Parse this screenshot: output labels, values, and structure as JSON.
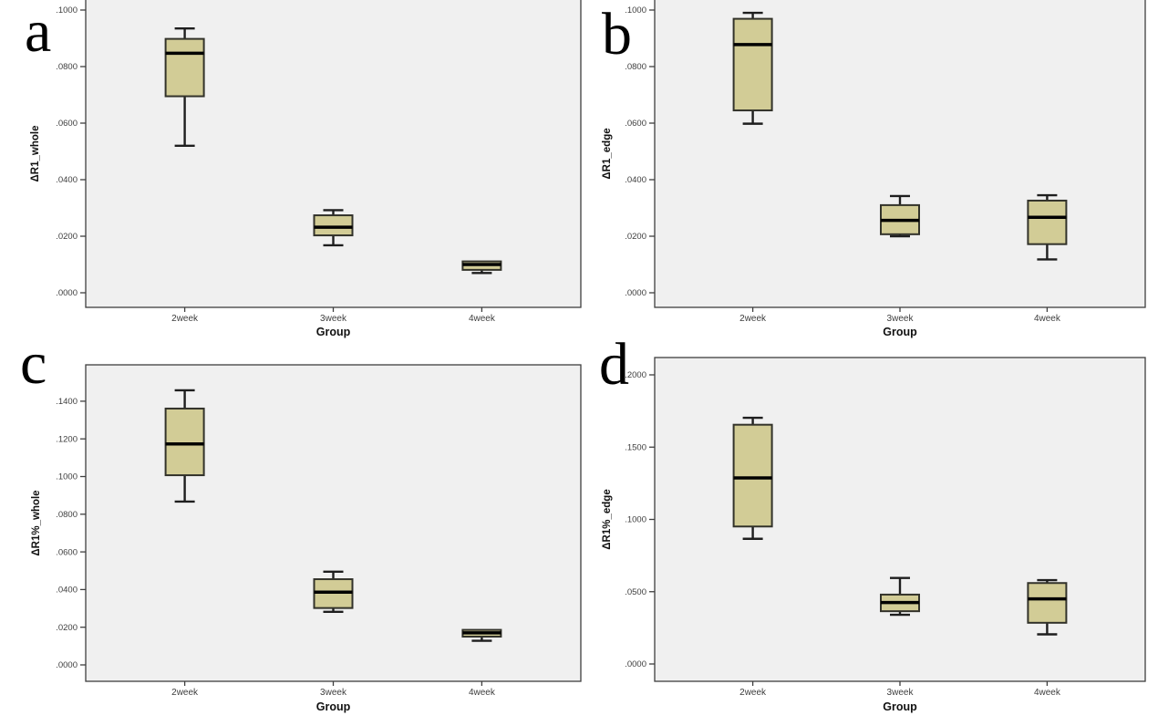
{
  "figure": {
    "panel_count": 4,
    "x_axis_title": "Group",
    "categories": [
      "2week",
      "3week",
      "4week"
    ]
  },
  "colors": {
    "background": "#FFFFFF",
    "plot_bg": "#F0F0F0",
    "frame": "#3F3F3F",
    "box_fill": "#D2CC96",
    "box_stroke": "#32322A",
    "median": "#000000",
    "whisker": "#1E1E1E",
    "tick_text": "#3D3D3D",
    "label_text": "#111111"
  },
  "chart_data": [
    {
      "type": "box",
      "panel_label": "a",
      "ylabel": "ΔR1_whole",
      "xlabel": "Group",
      "categories": [
        "2week",
        "3week",
        "4week"
      ],
      "ylim": [
        0,
        0.1
      ],
      "grid": false,
      "ytick_labels": [
        ".0000",
        ".0200",
        ".0400",
        ".0600",
        ".0800",
        ".1000"
      ],
      "ytick_values": [
        0,
        0.02,
        0.04,
        0.06,
        0.08,
        0.1
      ],
      "boxes": [
        {
          "category": "2week",
          "whisker_low": 0.052,
          "q1": 0.0695,
          "median": 0.0847,
          "q3": 0.0898,
          "whisker_high": 0.0935
        },
        {
          "category": "3week",
          "whisker_low": 0.0168,
          "q1": 0.0203,
          "median": 0.0232,
          "q3": 0.0274,
          "whisker_high": 0.0292
        },
        {
          "category": "4week",
          "whisker_low": 0.007,
          "q1": 0.0081,
          "median": 0.01,
          "q3": 0.0111,
          "whisker_high": 0.0111
        }
      ]
    },
    {
      "type": "box",
      "panel_label": "b",
      "ylabel": "ΔR1_edge",
      "xlabel": "Group",
      "categories": [
        "2week",
        "3week",
        "4week"
      ],
      "ylim": [
        0,
        0.1
      ],
      "grid": false,
      "ytick_labels": [
        ".0000",
        ".0200",
        ".0400",
        ".0600",
        ".0800",
        ".1000"
      ],
      "ytick_values": [
        0,
        0.02,
        0.04,
        0.06,
        0.08,
        0.1
      ],
      "boxes": [
        {
          "category": "2week",
          "whisker_low": 0.0598,
          "q1": 0.0645,
          "median": 0.0878,
          "q3": 0.0969,
          "whisker_high": 0.099
        },
        {
          "category": "3week",
          "whisker_low": 0.02,
          "q1": 0.0207,
          "median": 0.0256,
          "q3": 0.031,
          "whisker_high": 0.0342
        },
        {
          "category": "4week",
          "whisker_low": 0.0118,
          "q1": 0.0172,
          "median": 0.0267,
          "q3": 0.0326,
          "whisker_high": 0.0345
        }
      ]
    },
    {
      "type": "box",
      "panel_label": "c",
      "ylabel": "ΔR1%_whole",
      "xlabel": "Group",
      "categories": [
        "2week",
        "3week",
        "4week"
      ],
      "ylim": [
        0,
        0.14
      ],
      "grid": false,
      "ytick_labels": [
        ".0000",
        ".0200",
        ".0400",
        ".0600",
        ".0800",
        ".1000",
        ".1200",
        ".1400"
      ],
      "ytick_values": [
        0,
        0.02,
        0.04,
        0.06,
        0.08,
        0.1,
        0.12,
        0.14
      ],
      "boxes": [
        {
          "category": "2week",
          "whisker_low": 0.0867,
          "q1": 0.1007,
          "median": 0.1173,
          "q3": 0.1361,
          "whisker_high": 0.1458
        },
        {
          "category": "3week",
          "whisker_low": 0.0282,
          "q1": 0.0302,
          "median": 0.0386,
          "q3": 0.0455,
          "whisker_high": 0.0495
        },
        {
          "category": "4week",
          "whisker_low": 0.0128,
          "q1": 0.015,
          "median": 0.017,
          "q3": 0.0186,
          "whisker_high": 0.0186
        }
      ]
    },
    {
      "type": "box",
      "panel_label": "d",
      "ylabel": "ΔR1%_edge",
      "xlabel": "Group",
      "categories": [
        "2week",
        "3week",
        "4week"
      ],
      "ylim": [
        0,
        0.2
      ],
      "grid": false,
      "ytick_labels": [
        ".0000",
        ".0500",
        ".1000",
        ".1500",
        ".2000"
      ],
      "ytick_values": [
        0,
        0.05,
        0.1,
        0.15,
        0.2
      ],
      "boxes": [
        {
          "category": "2week",
          "whisker_low": 0.0866,
          "q1": 0.0951,
          "median": 0.1287,
          "q3": 0.1655,
          "whisker_high": 0.1703
        },
        {
          "category": "3week",
          "whisker_low": 0.034,
          "q1": 0.0365,
          "median": 0.0425,
          "q3": 0.048,
          "whisker_high": 0.0595
        },
        {
          "category": "4week",
          "whisker_low": 0.0205,
          "q1": 0.0285,
          "median": 0.045,
          "q3": 0.056,
          "whisker_high": 0.058
        }
      ]
    }
  ]
}
